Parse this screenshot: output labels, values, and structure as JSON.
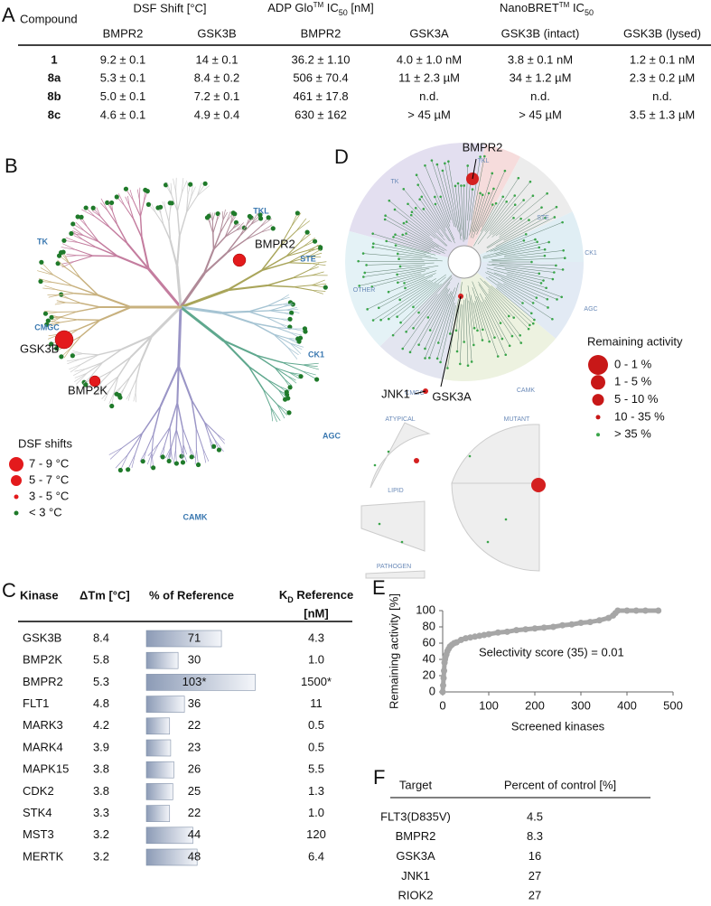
{
  "panel_a": {
    "label": "A",
    "compound_header": "Compound",
    "group_headers": {
      "dsf": "DSF Shift [°C]",
      "adp": [
        "ADP Glo",
        "TM",
        " IC",
        "50",
        " [nM]"
      ],
      "nano": [
        "NanoBRET",
        "TM",
        " IC",
        "50"
      ]
    },
    "subheaders": [
      "BMPR2",
      "GSK3B",
      "BMPR2",
      "GSK3A",
      "GSK3B (intact)",
      "GSK3B (lysed)"
    ],
    "rows": [
      [
        "1",
        "9.2 ± 0.1",
        "14 ± 0.1",
        "36.2 ± 1.10",
        "4.0 ± 1.0 nM",
        "3.8 ± 0.1 nM",
        "1.2 ± 0.1 nM"
      ],
      [
        "8a",
        "5.3 ± 0.1",
        "8.4 ± 0.2",
        "506 ± 70.4",
        "11 ± 2.3 µM",
        "34 ± 1.2 µM",
        "2.3 ± 0.2 µM"
      ],
      [
        "8b",
        "5.0 ± 0.1",
        "7.2 ± 0.1",
        "461 ± 17.8",
        "n.d.",
        "n.d.",
        "n.d."
      ],
      [
        "8c",
        "4.6 ± 0.1",
        "4.9 ± 0.4",
        "630 ± 162",
        "> 45 µM",
        "> 45 µM",
        "3.5 ± 1.3 µM"
      ]
    ]
  },
  "panel_b": {
    "label": "B",
    "clades": [
      "TK",
      "TKL",
      "STE",
      "CK1",
      "AGC",
      "CAMK",
      "CMGC"
    ],
    "highlights": [
      "BMPR2",
      "GSK3B",
      "BMP2K"
    ],
    "legend_title": "DSF shifts",
    "legend": [
      "7 - 9 °C",
      "5 - 7 °C",
      "3 - 5 °C",
      "< 3 °C"
    ]
  },
  "panel_d": {
    "label": "D",
    "groups": [
      "TK",
      "TKL",
      "STE",
      "CK1",
      "AGC",
      "CAMK",
      "CMGC",
      "OTHER"
    ],
    "extra_groups": [
      "ATYPICAL",
      "MUTANT",
      "LIPID",
      "PATHOGEN"
    ],
    "highlights": [
      "BMPR2",
      "JNK1",
      "GSK3A"
    ],
    "legend_title": "Remaining activity",
    "legend": [
      "0 - 1 %",
      "1 - 5 %",
      "5 - 10 %",
      "10 - 35 %",
      "> 35 %"
    ]
  },
  "panel_c": {
    "label": "C",
    "headers": {
      "kinase": "Kinase",
      "dtm": "ΔTm [°C]",
      "pct": "% of Reference",
      "kd": [
        "K",
        "D",
        " Reference",
        "[nM]"
      ]
    },
    "kinases": [
      "GSK3B",
      "BMP2K",
      "BMPR2",
      "FLT1",
      "MARK3",
      "MARK4",
      "MAPK15",
      "CDK2",
      "STK4",
      "MST3",
      "MERTK"
    ],
    "dtm": [
      "8.4",
      "5.8",
      "5.3",
      "4.8",
      "4.2",
      "3.9",
      "3.8",
      "3.8",
      "3.3",
      "3.2",
      "3.2"
    ],
    "pct": {
      "values": [
        71,
        30,
        103,
        36,
        22,
        23,
        26,
        25,
        22,
        44,
        48
      ],
      "value_labels": [
        "71",
        "30",
        "103*",
        "36",
        "22",
        "23",
        "26",
        "25",
        "22",
        "44",
        "48"
      ]
    },
    "kd": [
      "4.3",
      "1.0",
      "1500*",
      "11",
      "0.5",
      "0.5",
      "5.5",
      "1.3",
      "1.0",
      "120",
      "6.4"
    ]
  },
  "chart_data": {
    "type": "scatter",
    "label": "E",
    "color": "#a6a6a6",
    "x": [
      0,
      1,
      2,
      3,
      4,
      5,
      6,
      8,
      10,
      13,
      16,
      20,
      25,
      30,
      40,
      50,
      60,
      70,
      80,
      90,
      100,
      120,
      140,
      160,
      180,
      200,
      220,
      240,
      260,
      280,
      300,
      320,
      340,
      360,
      370,
      375,
      380,
      400,
      420,
      440,
      468
    ],
    "values": [
      0,
      8,
      17,
      26,
      36,
      40,
      43,
      46,
      50,
      53,
      56,
      58,
      60,
      61,
      64,
      66,
      67,
      68,
      69,
      70,
      71,
      73,
      74,
      76,
      77,
      78,
      79,
      80,
      82,
      83,
      85,
      86,
      88,
      91,
      94,
      97,
      100,
      100,
      100,
      100,
      100
    ],
    "xlabel": "Screened kinases",
    "ylabel": "Remaining activity [%]",
    "annotation": "Selectivity score (35) = 0.01",
    "xlim": [
      0,
      500
    ],
    "ylim": [
      0,
      100
    ],
    "xticks": [
      0,
      100,
      200,
      300,
      400,
      500
    ],
    "yticks": [
      0,
      20,
      40,
      60,
      80,
      100
    ]
  },
  "panel_f": {
    "label": "F",
    "headers": [
      "Target",
      "Percent of control [%]"
    ],
    "rows": [
      [
        "FLT3(D835V)",
        "4.5"
      ],
      [
        "BMPR2",
        "8.3"
      ],
      [
        "GSK3A",
        "16"
      ],
      [
        "JNK1",
        "27"
      ],
      [
        "RIOK2",
        "27"
      ]
    ]
  }
}
